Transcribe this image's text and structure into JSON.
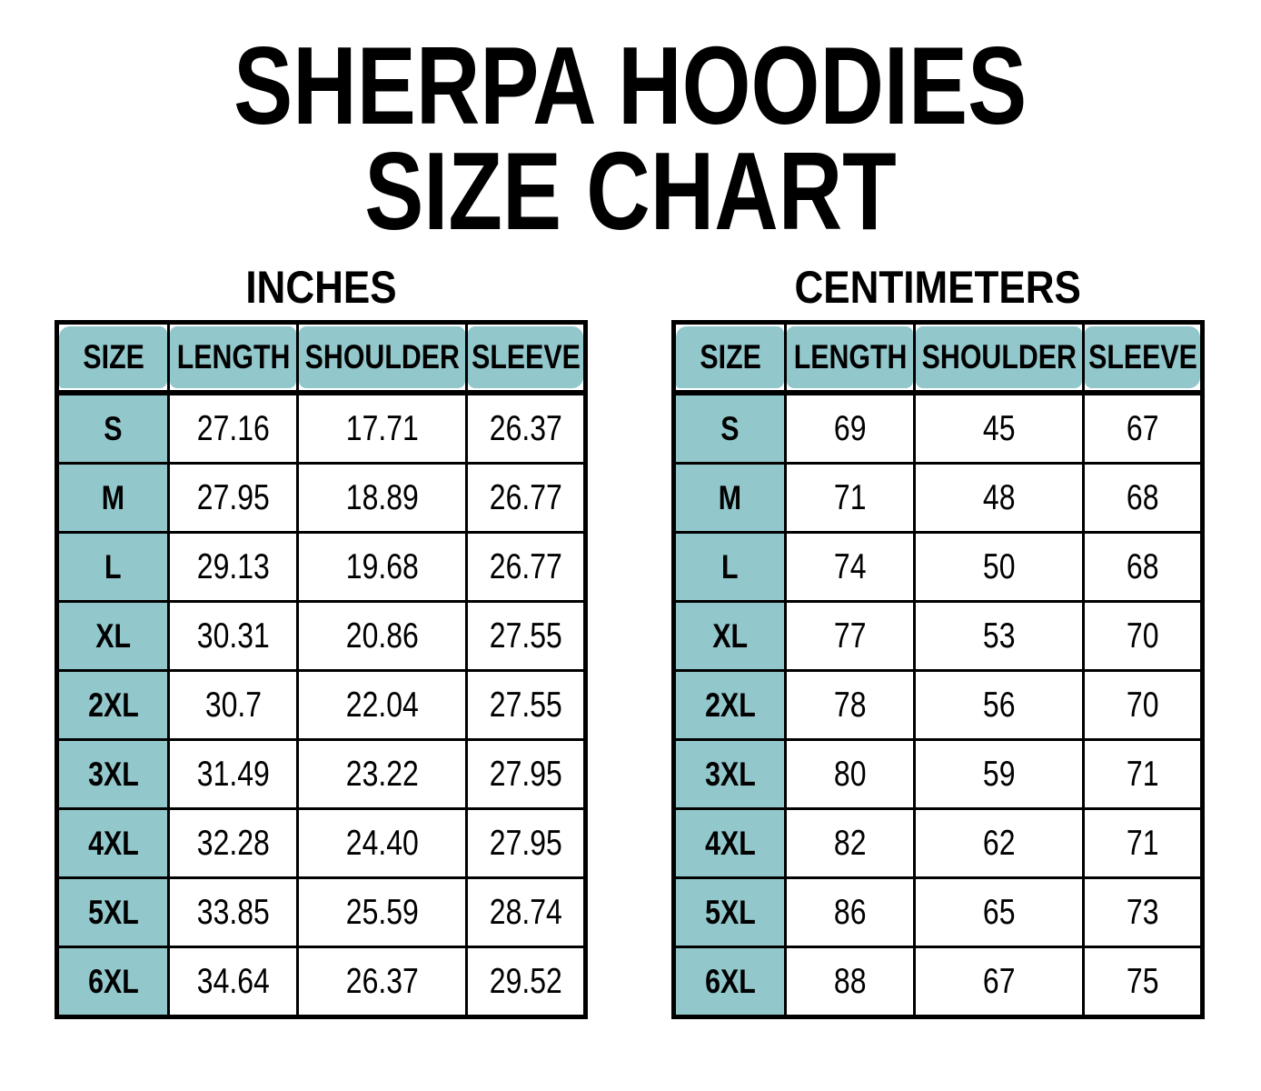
{
  "title": {
    "line1": "SHERPA HOODIES",
    "line2": "SIZE CHART"
  },
  "colors": {
    "header_fill_teal": "#92C7CC",
    "border_black": "#000000",
    "page_background": "#FFFFFF",
    "text": "#000000"
  },
  "tables": [
    {
      "unit_label": "INCHES",
      "columns": [
        "SIZE",
        "LENGTH",
        "SHOULDER",
        "SLEEVE"
      ],
      "rows": [
        {
          "size": "S",
          "values": [
            "27.16",
            "17.71",
            "26.37"
          ]
        },
        {
          "size": "M",
          "values": [
            "27.95",
            "18.89",
            "26.77"
          ]
        },
        {
          "size": "L",
          "values": [
            "29.13",
            "19.68",
            "26.77"
          ]
        },
        {
          "size": "XL",
          "values": [
            "30.31",
            "20.86",
            "27.55"
          ]
        },
        {
          "size": "2XL",
          "values": [
            "30.7",
            "22.04",
            "27.55"
          ]
        },
        {
          "size": "3XL",
          "values": [
            "31.49",
            "23.22",
            "27.95"
          ]
        },
        {
          "size": "4XL",
          "values": [
            "32.28",
            "24.40",
            "27.95"
          ]
        },
        {
          "size": "5XL",
          "values": [
            "33.85",
            "25.59",
            "28.74"
          ]
        },
        {
          "size": "6XL",
          "values": [
            "34.64",
            "26.37",
            "29.52"
          ]
        }
      ]
    },
    {
      "unit_label": "CENTIMETERS",
      "columns": [
        "SIZE",
        "LENGTH",
        "SHOULDER",
        "SLEEVE"
      ],
      "rows": [
        {
          "size": "S",
          "values": [
            "69",
            "45",
            "67"
          ]
        },
        {
          "size": "M",
          "values": [
            "71",
            "48",
            "68"
          ]
        },
        {
          "size": "L",
          "values": [
            "74",
            "50",
            "68"
          ]
        },
        {
          "size": "XL",
          "values": [
            "77",
            "53",
            "70"
          ]
        },
        {
          "size": "2XL",
          "values": [
            "78",
            "56",
            "70"
          ]
        },
        {
          "size": "3XL",
          "values": [
            "80",
            "59",
            "71"
          ]
        },
        {
          "size": "4XL",
          "values": [
            "82",
            "62",
            "71"
          ]
        },
        {
          "size": "5XL",
          "values": [
            "86",
            "65",
            "73"
          ]
        },
        {
          "size": "6XL",
          "values": [
            "88",
            "67",
            "75"
          ]
        }
      ]
    }
  ],
  "chart_data": [
    {
      "type": "table",
      "title": "SHERPA HOODIES SIZE CHART — INCHES",
      "columns": [
        "SIZE",
        "LENGTH",
        "SHOULDER",
        "SLEEVE"
      ],
      "rows": [
        [
          "S",
          27.16,
          17.71,
          26.37
        ],
        [
          "M",
          27.95,
          18.89,
          26.77
        ],
        [
          "L",
          29.13,
          19.68,
          26.77
        ],
        [
          "XL",
          30.31,
          20.86,
          27.55
        ],
        [
          "2XL",
          30.7,
          22.04,
          27.55
        ],
        [
          "3XL",
          31.49,
          23.22,
          27.95
        ],
        [
          "4XL",
          32.28,
          24.4,
          27.95
        ],
        [
          "5XL",
          33.85,
          25.59,
          28.74
        ],
        [
          "6XL",
          34.64,
          26.37,
          29.52
        ]
      ]
    },
    {
      "type": "table",
      "title": "SHERPA HOODIES SIZE CHART — CENTIMETERS",
      "columns": [
        "SIZE",
        "LENGTH",
        "SHOULDER",
        "SLEEVE"
      ],
      "rows": [
        [
          "S",
          69,
          45,
          67
        ],
        [
          "M",
          71,
          48,
          68
        ],
        [
          "L",
          74,
          50,
          68
        ],
        [
          "XL",
          77,
          53,
          70
        ],
        [
          "2XL",
          78,
          56,
          70
        ],
        [
          "3XL",
          80,
          59,
          71
        ],
        [
          "4XL",
          82,
          62,
          71
        ],
        [
          "5XL",
          86,
          65,
          73
        ],
        [
          "6XL",
          88,
          67,
          75
        ]
      ]
    }
  ]
}
